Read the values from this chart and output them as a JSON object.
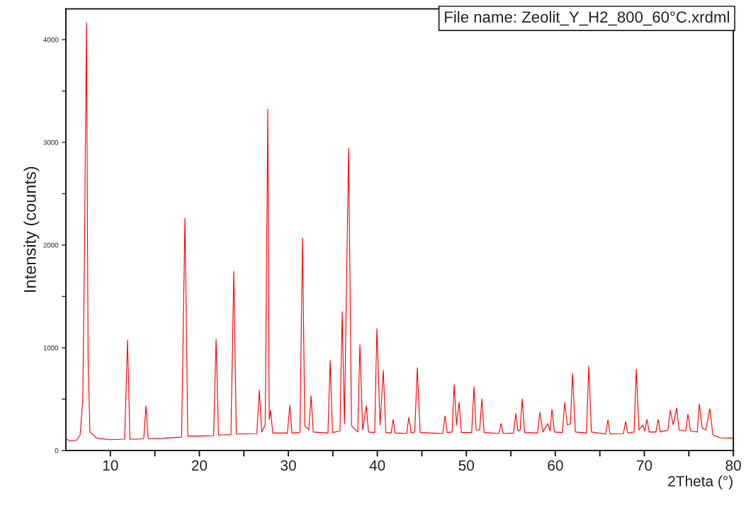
{
  "chart_data": {
    "type": "line",
    "xlabel": "2Theta (°)",
    "ylabel": "Intensity (counts)",
    "annotations": [
      "File name: Zeolit_Y_H2_800_60°C.xrdml"
    ],
    "xlim": [
      5,
      80
    ],
    "ylim": [
      0,
      4300
    ],
    "xticks": [
      10,
      {
        "value": 15,
        "label": null
      },
      20,
      {
        "value": 25,
        "label": null
      },
      30,
      {
        "value": 35,
        "label": null
      },
      40,
      {
        "value": 45,
        "label": null
      },
      50,
      {
        "value": 55,
        "label": null
      },
      60,
      {
        "value": 65,
        "label": null
      },
      70,
      {
        "value": 75,
        "label": null
      },
      80
    ],
    "yticks": [
      0,
      {
        "value": 500,
        "label": null
      },
      1000,
      {
        "value": 1500,
        "label": null
      },
      2000,
      {
        "value": 2500,
        "label": null
      },
      3000,
      {
        "value": 3500,
        "label": null
      },
      4000
    ],
    "grid": false,
    "legend": false,
    "line_style": "solid",
    "marker": "none",
    "series": [
      {
        "color": "#ff0000",
        "x": [
          5,
          5.5,
          6.2,
          6.6,
          6.9,
          7.1,
          7.31,
          7.5,
          7.7,
          8.5,
          10,
          11.6,
          11.93,
          12.2,
          13,
          13.75,
          14.0,
          14.25,
          16,
          18.0,
          18.38,
          18.7,
          20,
          21.6,
          21.88,
          22.15,
          23.55,
          23.87,
          24.15,
          26.45,
          26.74,
          27.0,
          27.4,
          27.69,
          27.85,
          28.0,
          28.25,
          29.9,
          30.16,
          30.4,
          31.3,
          31.59,
          31.85,
          32.3,
          32.55,
          32.8,
          34.45,
          34.7,
          34.95,
          35.8,
          36.05,
          36.3,
          36.77,
          37.1,
          37.8,
          38.04,
          38.35,
          38.76,
          39.0,
          39.7,
          39.95,
          40.3,
          40.67,
          40.95,
          41.55,
          41.78,
          42.0,
          43.3,
          43.54,
          43.8,
          44.2,
          44.49,
          44.8,
          47.35,
          47.6,
          47.85,
          48.4,
          48.63,
          48.9,
          49.19,
          49.45,
          50.6,
          50.86,
          51.1,
          51.5,
          51.74,
          52.0,
          53.65,
          53.89,
          54.15,
          55.3,
          55.56,
          55.8,
          56.05,
          56.27,
          56.55,
          58.0,
          58.26,
          58.6,
          59.14,
          59.4,
          59.62,
          59.9,
          60.8,
          61.05,
          61.35,
          61.7,
          61.93,
          62.25,
          63.5,
          63.76,
          64.05,
          65.65,
          65.91,
          66.15,
          67.65,
          67.9,
          68.15,
          68.85,
          69.09,
          69.4,
          69.81,
          70.05,
          70.29,
          70.55,
          71.3,
          71.56,
          71.8,
          72.65,
          72.91,
          73.25,
          73.63,
          73.9,
          74.65,
          74.9,
          75.2,
          75.95,
          76.18,
          76.5,
          76.9,
          77.37,
          77.7,
          78.5,
          80
        ],
        "values": [
          110,
          95,
          100,
          150,
          500,
          2000,
          4165,
          900,
          180,
          120,
          105,
          110,
          1076,
          110,
          110,
          115,
          434,
          115,
          120,
          130,
          2262,
          140,
          140,
          145,
          1083,
          150,
          155,
          1745,
          160,
          165,
          586,
          180,
          250,
          3324,
          300,
          393,
          170,
          170,
          441,
          170,
          175,
          2069,
          240,
          200,
          531,
          180,
          170,
          876,
          175,
          190,
          1352,
          260,
          2945,
          240,
          180,
          1028,
          200,
          434,
          180,
          175,
          1186,
          250,
          779,
          175,
          170,
          303,
          170,
          165,
          324,
          170,
          180,
          807,
          175,
          165,
          338,
          175,
          180,
          641,
          250,
          469,
          175,
          175,
          621,
          200,
          200,
          503,
          175,
          165,
          262,
          165,
          170,
          359,
          190,
          200,
          503,
          175,
          170,
          372,
          180,
          262,
          190,
          400,
          180,
          175,
          469,
          250,
          260,
          752,
          180,
          170,
          821,
          180,
          160,
          297,
          160,
          165,
          283,
          170,
          180,
          793,
          200,
          248,
          190,
          303,
          180,
          180,
          303,
          180,
          200,
          393,
          250,
          414,
          200,
          190,
          352,
          190,
          180,
          455,
          220,
          200,
          407,
          150,
          125,
          120
        ]
      }
    ]
  }
}
